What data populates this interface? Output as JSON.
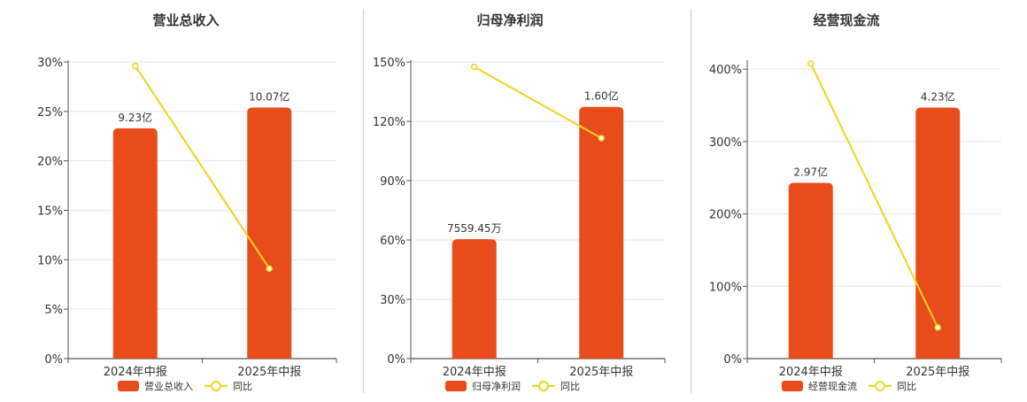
{
  "chart_data": [
    {
      "type": "bar",
      "title": "营业总收入",
      "categories": [
        "2024年中报",
        "2025年中报"
      ],
      "y_axis": {
        "ticks": [
          "0%",
          "5%",
          "10%",
          "15%",
          "20%",
          "25%",
          "30%"
        ],
        "ylim": [
          0,
          30
        ]
      },
      "series": [
        {
          "name": "营业总收入",
          "kind": "bar",
          "values": [
            23.3,
            25.4
          ],
          "labels": [
            "9.23亿",
            "10.07亿"
          ],
          "color": "#e84c1a"
        },
        {
          "name": "同比",
          "kind": "line",
          "values": [
            29.6,
            9.1
          ],
          "color": "#f2d21e"
        }
      ],
      "grid": true,
      "legend": "bottom"
    },
    {
      "type": "bar",
      "title": "归母净利润",
      "categories": [
        "2024年中报",
        "2025年中报"
      ],
      "y_axis": {
        "ticks": [
          "0%",
          "30%",
          "60%",
          "90%",
          "120%",
          "150%"
        ],
        "ylim": [
          0,
          150
        ]
      },
      "series": [
        {
          "name": "归母净利润",
          "kind": "bar",
          "values": [
            60.4,
            127.3
          ],
          "labels": [
            "7559.45万",
            "1.60亿"
          ],
          "color": "#e84c1a"
        },
        {
          "name": "同比",
          "kind": "line",
          "values": [
            147.5,
            111.5
          ],
          "color": "#f2d21e"
        }
      ],
      "grid": true,
      "legend": "bottom"
    },
    {
      "type": "bar",
      "title": "经营现金流",
      "categories": [
        "2024年中报",
        "2025年中报"
      ],
      "y_axis": {
        "ticks": [
          "0%",
          "100%",
          "200%",
          "300%",
          "400%"
        ],
        "ylim": [
          0,
          410
        ]
      },
      "series": [
        {
          "name": "经营现金流",
          "kind": "bar",
          "values": [
            243,
            347
          ],
          "labels": [
            "2.97亿",
            "4.23亿"
          ],
          "color": "#e84c1a"
        },
        {
          "name": "同比",
          "kind": "line",
          "values": [
            408,
            43
          ],
          "color": "#f2d21e"
        }
      ],
      "grid": true,
      "legend": "bottom"
    }
  ]
}
